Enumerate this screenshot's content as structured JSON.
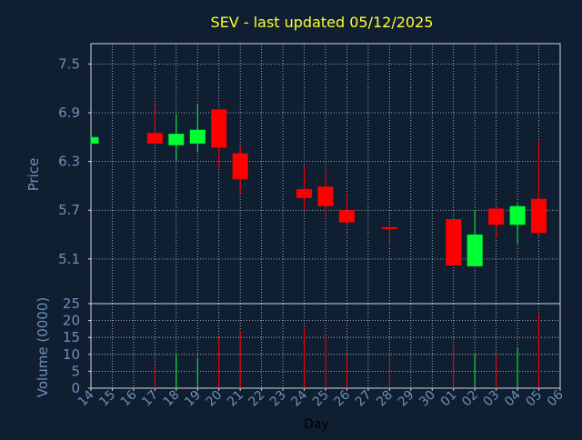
{
  "chart_data": {
    "type": "candlestick",
    "title": "SEV - last updated 05/12/2025",
    "xlabel": "Day",
    "price_panel": {
      "ylabel": "Price",
      "ylim": [
        4.55,
        7.75
      ],
      "yticks": [
        5.1,
        5.7,
        6.3,
        6.9,
        7.5
      ],
      "grid": true
    },
    "volume_panel": {
      "ylabel": "Volume (0000)",
      "ylim": [
        0,
        25
      ],
      "yticks": [
        0,
        5,
        10,
        15,
        20,
        25
      ],
      "grid": true
    },
    "x_ticks": [
      "14",
      "15",
      "16",
      "17",
      "18",
      "19",
      "20",
      "21",
      "22",
      "23",
      "24",
      "25",
      "26",
      "27",
      "28",
      "29",
      "30",
      "01",
      "02",
      "03",
      "04",
      "05",
      "06"
    ],
    "up_color": "#00ff33",
    "down_color": "#ff0000",
    "candles": [
      {
        "day": "14",
        "open": 6.52,
        "high": 6.6,
        "low": 6.52,
        "close": 6.6,
        "volume": 0
      },
      {
        "day": "17",
        "open": 6.65,
        "high": 7.0,
        "low": 6.52,
        "close": 6.52,
        "volume": 7
      },
      {
        "day": "18",
        "open": 6.5,
        "high": 6.88,
        "low": 6.3,
        "close": 6.64,
        "volume": 10
      },
      {
        "day": "19",
        "open": 6.52,
        "high": 7.0,
        "low": 6.42,
        "close": 6.69,
        "volume": 9
      },
      {
        "day": "20",
        "open": 6.94,
        "high": 6.94,
        "low": 6.22,
        "close": 6.47,
        "volume": 15
      },
      {
        "day": "21",
        "open": 6.4,
        "high": 6.49,
        "low": 5.9,
        "close": 6.08,
        "volume": 17
      },
      {
        "day": "24",
        "open": 5.96,
        "high": 6.25,
        "low": 5.71,
        "close": 5.85,
        "volume": 18
      },
      {
        "day": "25",
        "open": 5.99,
        "high": 6.2,
        "low": 5.63,
        "close": 5.75,
        "volume": 16
      },
      {
        "day": "26",
        "open": 5.7,
        "high": 5.9,
        "low": 5.53,
        "close": 5.55,
        "volume": 10
      },
      {
        "day": "28",
        "open": 5.49,
        "high": 5.54,
        "low": 5.25,
        "close": 5.47,
        "volume": 9
      },
      {
        "day": "01",
        "open": 5.59,
        "high": 5.59,
        "low": 5.02,
        "close": 5.02,
        "volume": 13
      },
      {
        "day": "02",
        "open": 5.01,
        "high": 5.7,
        "low": 5.01,
        "close": 5.4,
        "volume": 10
      },
      {
        "day": "03",
        "open": 5.72,
        "high": 5.72,
        "low": 5.35,
        "close": 5.52,
        "volume": 10
      },
      {
        "day": "04",
        "open": 5.52,
        "high": 5.78,
        "low": 5.28,
        "close": 5.75,
        "volume": 12
      },
      {
        "day": "05",
        "open": 5.84,
        "high": 6.56,
        "low": 5.4,
        "close": 5.42,
        "volume": 22
      }
    ]
  }
}
